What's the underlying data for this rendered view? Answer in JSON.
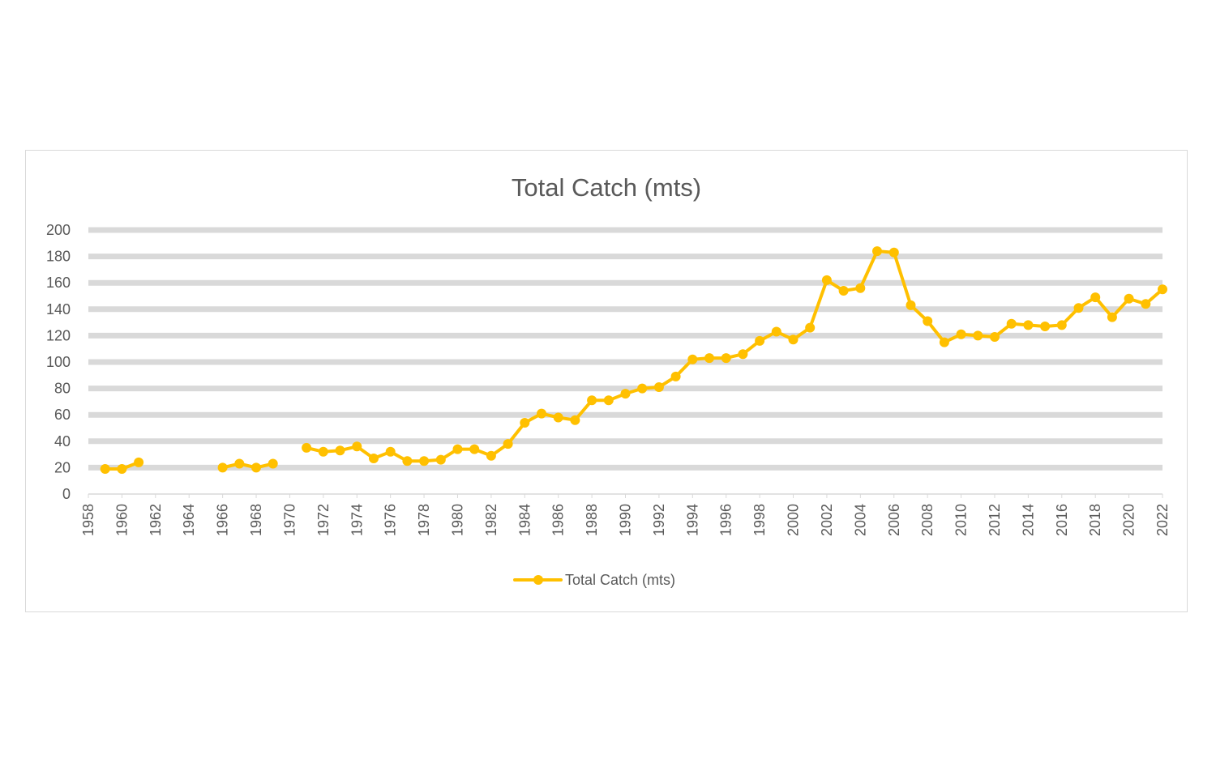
{
  "chart_data": {
    "type": "line",
    "title": "Total Catch (mts)",
    "xlabel": "",
    "ylabel": "",
    "ylim": [
      0,
      200
    ],
    "y_ticks": [
      0,
      20,
      40,
      60,
      80,
      100,
      120,
      140,
      160,
      180,
      200
    ],
    "x_ticks": [
      1958,
      1960,
      1962,
      1964,
      1966,
      1968,
      1970,
      1972,
      1974,
      1976,
      1978,
      1980,
      1982,
      1984,
      1986,
      1988,
      1990,
      1992,
      1994,
      1996,
      1998,
      2000,
      2002,
      2004,
      2006,
      2008,
      2010,
      2012,
      2014,
      2016,
      2018,
      2020,
      2022
    ],
    "xlim": [
      1958,
      2022
    ],
    "grid": true,
    "legend": "bottom-center",
    "colors": {
      "series": "#FFC000",
      "grid": "#d9d9d9",
      "text": "#595959",
      "axis": "#d9d9d9"
    },
    "series": [
      {
        "name": "Total Catch (mts)",
        "x": [
          1959,
          1960,
          1961,
          1962,
          1963,
          1964,
          1965,
          1966,
          1967,
          1968,
          1969,
          1970,
          1971,
          1972,
          1973,
          1974,
          1975,
          1976,
          1977,
          1978,
          1979,
          1980,
          1981,
          1982,
          1983,
          1984,
          1985,
          1986,
          1987,
          1988,
          1989,
          1990,
          1991,
          1992,
          1993,
          1994,
          1995,
          1996,
          1997,
          1998,
          1999,
          2000,
          2001,
          2002,
          2003,
          2004,
          2005,
          2006,
          2007,
          2008,
          2009,
          2010,
          2011,
          2012,
          2013,
          2014,
          2015,
          2016,
          2017,
          2018,
          2019,
          2020,
          2021,
          2022
        ],
        "values": [
          19,
          19,
          24,
          null,
          null,
          null,
          null,
          20,
          23,
          20,
          23,
          null,
          35,
          32,
          33,
          36,
          27,
          32,
          25,
          25,
          26,
          34,
          34,
          29,
          38,
          54,
          61,
          58,
          56,
          71,
          71,
          76,
          80,
          81,
          89,
          102,
          103,
          103,
          106,
          116,
          123,
          117,
          126,
          162,
          154,
          156,
          184,
          183,
          143,
          131,
          115,
          121,
          120,
          119,
          129,
          128,
          127,
          128,
          141,
          149,
          134,
          148,
          144,
          155
        ]
      }
    ]
  }
}
